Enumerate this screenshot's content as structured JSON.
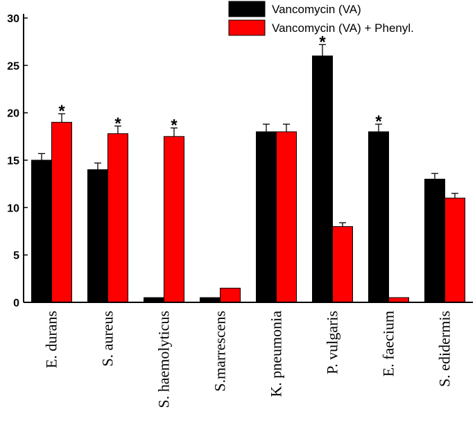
{
  "chart_data": {
    "type": "bar",
    "title": "",
    "xlabel": "",
    "ylabel": "",
    "ylim": [
      0,
      30
    ],
    "yticks": [
      0,
      5,
      10,
      15,
      20,
      25,
      30
    ],
    "grid": false,
    "legend_position": "top-right",
    "categories": [
      "E. durans",
      "S. aureus",
      "S. haemolyticus",
      "S.marrescens",
      "K. pneumonia",
      "P. vulgaris",
      "E. faecium",
      "S. edidermis"
    ],
    "series": [
      {
        "name": "Vancomycin (VA)",
        "color": "#000000",
        "values": [
          15,
          14,
          0.5,
          0.5,
          18,
          26,
          18,
          13
        ],
        "errors": [
          0.7,
          0.7,
          0,
          0,
          0.8,
          1.2,
          0.8,
          0.6
        ],
        "significant": [
          false,
          false,
          false,
          false,
          false,
          true,
          true,
          false
        ]
      },
      {
        "name": "Vancomycin (VA) + Phenyl.",
        "color": "#ff0000",
        "values": [
          19,
          17.8,
          17.5,
          1.5,
          18,
          8,
          0.5,
          11
        ],
        "errors": [
          0.9,
          0.8,
          0.9,
          0,
          0.8,
          0.4,
          0,
          0.5
        ],
        "significant": [
          true,
          true,
          true,
          false,
          false,
          false,
          false,
          false
        ]
      }
    ],
    "significance_marker": "*"
  }
}
